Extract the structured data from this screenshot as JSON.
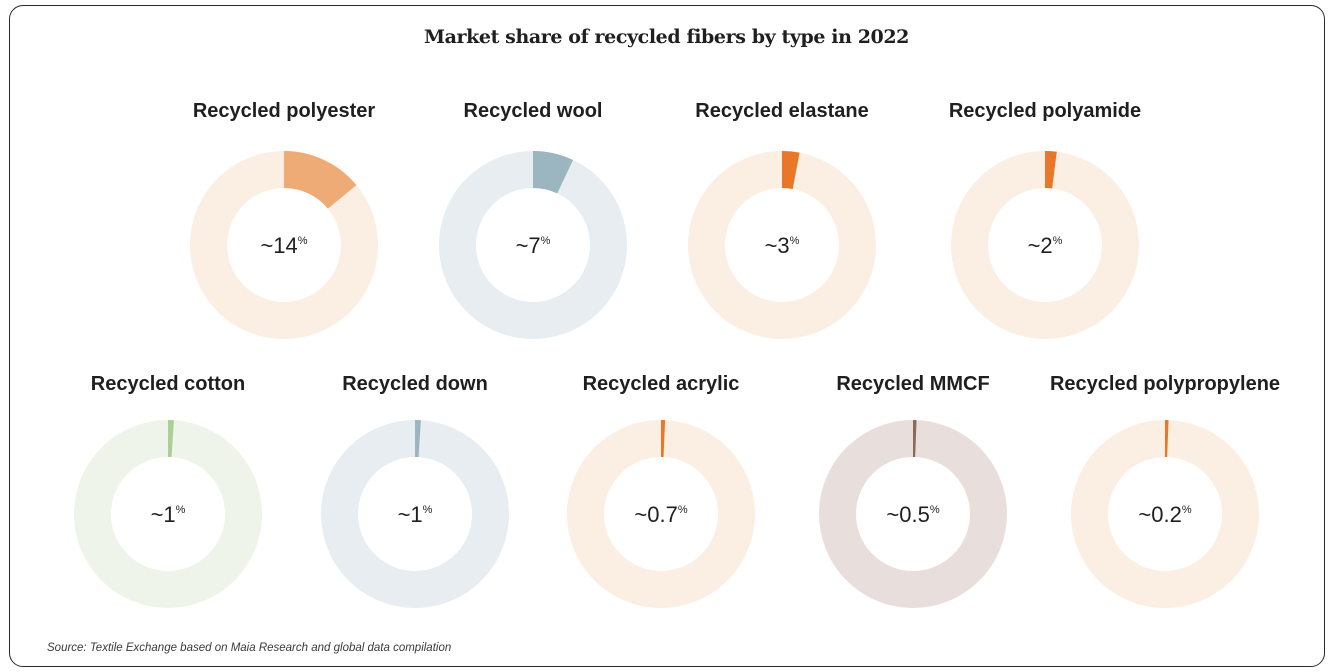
{
  "title": "Market share of recycled fibers by type in 2022",
  "source": "Source: Textile Exchange based on Maia Research and global data compilation",
  "chart_data": {
    "type": "pie",
    "title": "Market share of recycled fibers by type in 2022",
    "unit": "%",
    "series": [
      {
        "name": "Recycled polyester",
        "value": 14,
        "display": "~14",
        "color": "#eeab75",
        "track": "#fbeee2"
      },
      {
        "name": "Recycled wool",
        "value": 7,
        "display": "~7",
        "color": "#9bb6c1",
        "track": "#e8edf1"
      },
      {
        "name": "Recycled elastane",
        "value": 3,
        "display": "~3",
        "color": "#e8772a",
        "track": "#fbeee2"
      },
      {
        "name": "Recycled polyamide",
        "value": 2,
        "display": "~2",
        "color": "#e8772a",
        "track": "#fbeee2"
      },
      {
        "name": "Recycled cotton",
        "value": 1,
        "display": "~1",
        "color": "#abcf96",
        "track": "#eef4ea"
      },
      {
        "name": "Recycled down",
        "value": 1,
        "display": "~1",
        "color": "#9bb6c1",
        "track": "#e8edf1"
      },
      {
        "name": "Recycled acrylic",
        "value": 0.7,
        "display": "~0.7",
        "color": "#e8772a",
        "track": "#fbeee2"
      },
      {
        "name": "Recycled MMCF",
        "value": 0.5,
        "display": "~0.5",
        "color": "#8b6a57",
        "track": "#e8dfdc"
      },
      {
        "name": "Recycled polypropylene",
        "value": 0.2,
        "display": "~0.2",
        "color": "#e8772a",
        "track": "#fbeee2"
      }
    ]
  }
}
